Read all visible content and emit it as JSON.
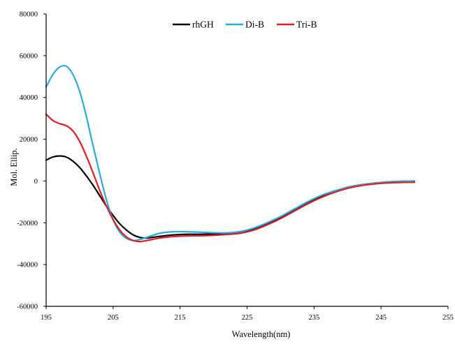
{
  "chart_data": {
    "type": "line",
    "title": "",
    "xlabel": "Wavelength(nm)",
    "ylabel": "Mol. Ellip.",
    "xlim": [
      195,
      255
    ],
    "ylim": [
      -60000,
      80000
    ],
    "x_ticks": [
      195,
      205,
      215,
      225,
      235,
      245,
      255
    ],
    "y_ticks": [
      80000,
      60000,
      40000,
      20000,
      0,
      -20000,
      -40000,
      -60000
    ],
    "grid": false,
    "legend_position": "top-center",
    "series": [
      {
        "name": "rhGH",
        "color": "#000000",
        "x": [
          195,
          196,
          197,
          198,
          199,
          200,
          201,
          202,
          203,
          204,
          205,
          206,
          207,
          208,
          209,
          210,
          212,
          214,
          216,
          218,
          220,
          222,
          224,
          226,
          228,
          230,
          232,
          234,
          236,
          238,
          240,
          242,
          244,
          246,
          248,
          250
        ],
        "y": [
          10000,
          11500,
          12000,
          11500,
          9500,
          6500,
          2500,
          -2000,
          -7000,
          -12000,
          -16500,
          -20500,
          -23500,
          -25800,
          -27000,
          -27300,
          -26500,
          -25800,
          -25500,
          -25500,
          -25400,
          -25200,
          -24500,
          -23000,
          -20500,
          -17500,
          -14000,
          -10500,
          -7500,
          -5000,
          -3000,
          -1800,
          -1000,
          -500,
          -200,
          0
        ]
      },
      {
        "name": "Di-B",
        "color": "#29abe2",
        "x": [
          195,
          196,
          197,
          198,
          199,
          200,
          201,
          202,
          203,
          204,
          205,
          206,
          207,
          208,
          209,
          210,
          212,
          214,
          216,
          218,
          220,
          222,
          224,
          226,
          228,
          230,
          232,
          234,
          236,
          238,
          240,
          242,
          244,
          246,
          248,
          250
        ],
        "y": [
          45000,
          51000,
          54500,
          55000,
          51000,
          43000,
          31000,
          17000,
          3500,
          -9000,
          -18500,
          -24500,
          -27500,
          -28500,
          -28000,
          -27000,
          -25000,
          -24300,
          -24300,
          -24500,
          -24800,
          -24800,
          -24200,
          -22500,
          -20000,
          -17000,
          -13500,
          -10000,
          -7000,
          -4800,
          -3000,
          -1800,
          -1000,
          -400,
          -100,
          0
        ]
      },
      {
        "name": "Tri-B",
        "color": "#e31e24",
        "x": [
          195,
          196,
          197,
          198,
          199,
          200,
          201,
          202,
          203,
          204,
          205,
          206,
          207,
          208,
          209,
          210,
          212,
          214,
          216,
          218,
          220,
          222,
          224,
          226,
          228,
          230,
          232,
          234,
          236,
          238,
          240,
          242,
          244,
          246,
          248,
          250
        ],
        "y": [
          32000,
          29000,
          27500,
          26500,
          24000,
          19000,
          12000,
          4000,
          -4500,
          -12000,
          -18500,
          -23500,
          -26800,
          -28500,
          -29000,
          -28500,
          -27300,
          -26600,
          -26300,
          -26200,
          -26000,
          -25600,
          -25000,
          -23500,
          -21000,
          -18000,
          -14500,
          -11000,
          -8000,
          -5500,
          -3500,
          -2200,
          -1400,
          -900,
          -700,
          -600
        ]
      }
    ]
  }
}
